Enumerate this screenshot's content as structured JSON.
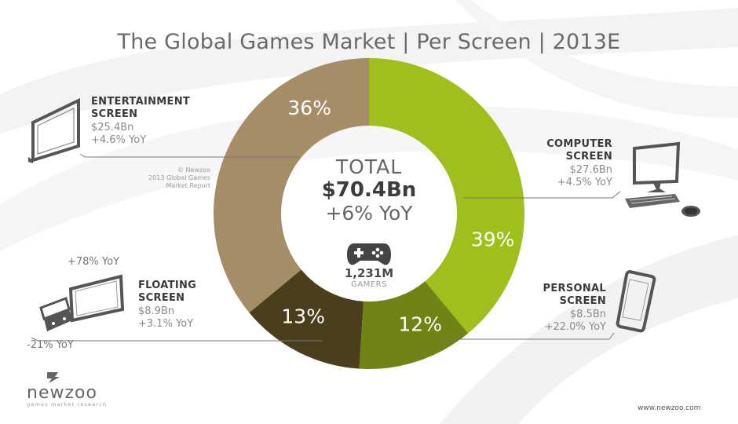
{
  "title": "The Global Games Market | Per Screen | 2013E",
  "chart_data": {
    "type": "pie",
    "donut": true,
    "slices": [
      {
        "label": "COMPUTER SCREEN",
        "value": 39,
        "display": "39%",
        "color": "#9ebf1c"
      },
      {
        "label": "PERSONAL SCREEN",
        "value": 12,
        "display": "12%",
        "color": "#6f8415"
      },
      {
        "label": "FLOATING SCREEN",
        "value": 13,
        "display": "13%",
        "color": "#4a3e1c"
      },
      {
        "label": "ENTERTAINMENT SCREEN",
        "value": 36,
        "display": "36%",
        "color": "#a58e67"
      }
    ]
  },
  "center": {
    "label": "TOTAL",
    "total": "$70.4Bn",
    "growth": "+6% YoY",
    "gamers_count": "1,231M",
    "gamers_label": "GAMERS"
  },
  "segments": {
    "entertainment": {
      "name_line1": "ENTERTAINMENT",
      "name_line2": "SCREEN",
      "value": "$25.4Bn",
      "yoy": "+4.6% YoY"
    },
    "computer": {
      "name_line1": "COMPUTER",
      "name_line2": "SCREEN",
      "value": "$27.6Bn",
      "yoy": "+4.5% YoY"
    },
    "floating": {
      "name_line1": "FLOATING",
      "name_line2": "SCREEN",
      "value": "$8.9Bn",
      "yoy": "+3.1% YoY",
      "tablet_yoy": "+78% YoY",
      "handheld_yoy": "-21% YoY"
    },
    "personal": {
      "name_line1": "PERSONAL",
      "name_line2": "SCREEN",
      "value": "$8.5Bn",
      "yoy": "+22.0% YoY"
    }
  },
  "copyright": {
    "line1": "© Newzoo",
    "line2": "2013 Global Games",
    "line3": "Market Report"
  },
  "brand": {
    "name": "newzoo",
    "tagline": "games market research",
    "url": "www.newzoo.com"
  },
  "icons": [
    "tv-icon",
    "desktop-computer-icon",
    "tablet-icon",
    "handheld-console-icon",
    "smartphone-icon",
    "gamepad-icon",
    "newzoo-logo-icon"
  ]
}
